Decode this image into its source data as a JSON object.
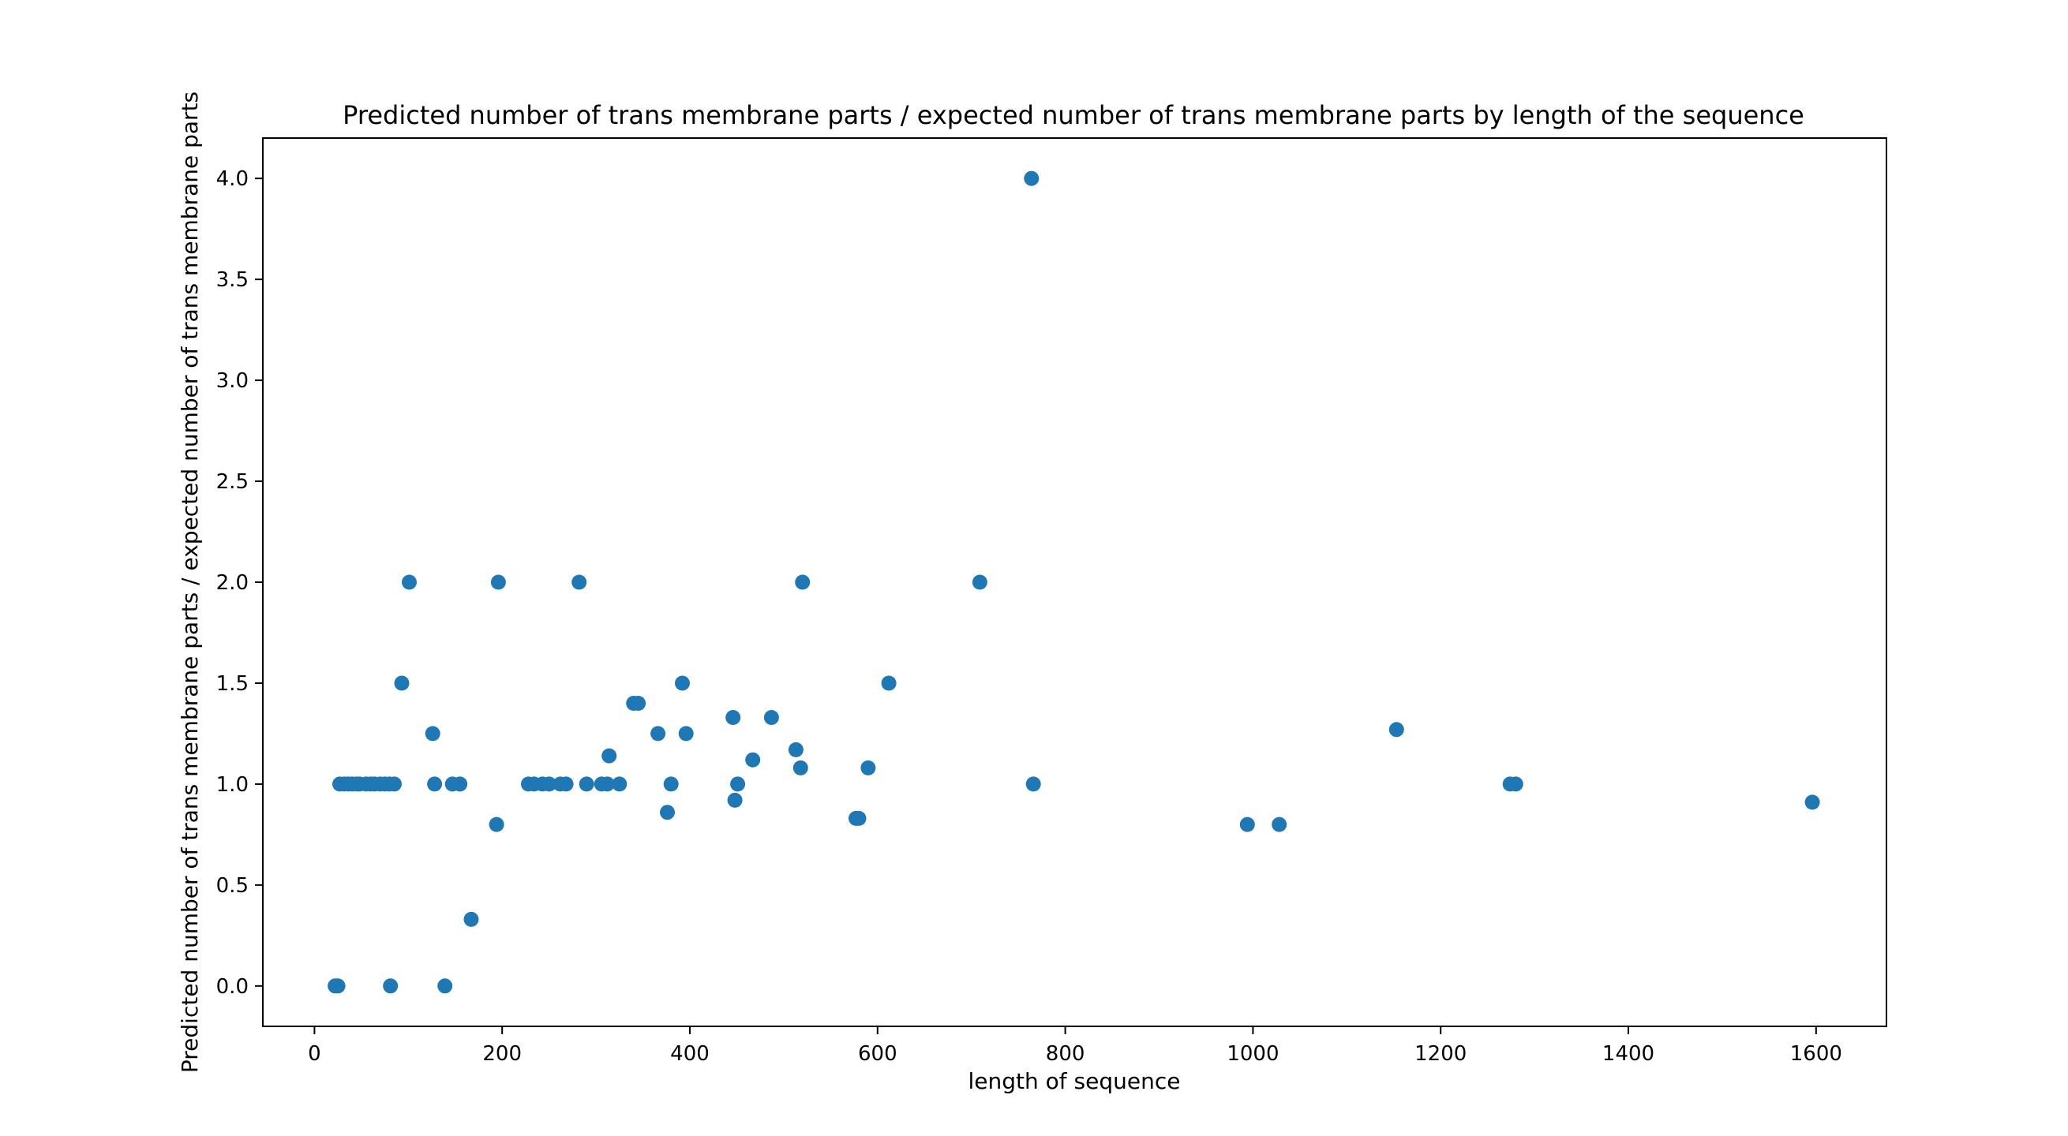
{
  "chart_data": {
    "type": "scatter",
    "title": "Predicted number of trans membrane parts / expected number of trans membrane parts by length of the sequence",
    "xlabel": "length of sequence",
    "ylabel": "Predicted number of trans membrane parts / expected number of trans membrane parts",
    "xlim": [
      -55,
      1675
    ],
    "ylim": [
      -0.2,
      4.2
    ],
    "x_ticks": [
      0,
      200,
      400,
      600,
      800,
      1000,
      1200,
      1400,
      1600
    ],
    "x_tick_labels": [
      "0",
      "200",
      "400",
      "600",
      "800",
      "1000",
      "1200",
      "1400",
      "1600"
    ],
    "y_ticks": [
      0.0,
      0.5,
      1.0,
      1.5,
      2.0,
      2.5,
      3.0,
      3.5,
      4.0
    ],
    "y_tick_labels": [
      "0.0",
      "0.5",
      "1.0",
      "1.5",
      "2.0",
      "2.5",
      "3.0",
      "3.5",
      "4.0"
    ],
    "grid": false,
    "marker_color": "#1f77b4",
    "series": [
      {
        "points": [
          [
            22,
            0.0
          ],
          [
            25,
            0.0
          ],
          [
            27,
            1.0
          ],
          [
            32,
            1.0
          ],
          [
            36,
            1.0
          ],
          [
            40,
            1.0
          ],
          [
            45,
            1.0
          ],
          [
            48,
            1.0
          ],
          [
            55,
            1.0
          ],
          [
            60,
            1.0
          ],
          [
            64,
            1.0
          ],
          [
            70,
            1.0
          ],
          [
            75,
            1.0
          ],
          [
            80,
            1.0
          ],
          [
            85,
            1.0
          ],
          [
            81,
            0.0
          ],
          [
            93,
            1.5
          ],
          [
            101,
            2.0
          ],
          [
            126,
            1.25
          ],
          [
            128,
            1.0
          ],
          [
            139,
            0.0
          ],
          [
            147,
            1.0
          ],
          [
            155,
            1.0
          ],
          [
            167,
            0.33
          ],
          [
            194,
            0.8
          ],
          [
            196,
            2.0
          ],
          [
            228,
            1.0
          ],
          [
            234,
            1.0
          ],
          [
            243,
            1.0
          ],
          [
            250,
            1.0
          ],
          [
            262,
            1.0
          ],
          [
            268,
            1.0
          ],
          [
            282,
            2.0
          ],
          [
            290,
            1.0
          ],
          [
            306,
            1.0
          ],
          [
            312,
            1.0
          ],
          [
            314,
            1.14
          ],
          [
            325,
            1.0
          ],
          [
            340,
            1.4
          ],
          [
            345,
            1.4
          ],
          [
            366,
            1.25
          ],
          [
            376,
            0.86
          ],
          [
            380,
            1.0
          ],
          [
            392,
            1.5
          ],
          [
            396,
            1.25
          ],
          [
            446,
            1.33
          ],
          [
            448,
            0.92
          ],
          [
            451,
            1.0
          ],
          [
            467,
            1.12
          ],
          [
            487,
            1.33
          ],
          [
            513,
            1.17
          ],
          [
            518,
            1.08
          ],
          [
            520,
            2.0
          ],
          [
            577,
            0.83
          ],
          [
            580,
            0.83
          ],
          [
            590,
            1.08
          ],
          [
            612,
            1.5
          ],
          [
            709,
            2.0
          ],
          [
            764,
            4.0
          ],
          [
            766,
            1.0
          ],
          [
            994,
            0.8
          ],
          [
            1028,
            0.8
          ],
          [
            1153,
            1.27
          ],
          [
            1274,
            1.0
          ],
          [
            1280,
            1.0
          ],
          [
            1596,
            0.91
          ]
        ]
      }
    ]
  }
}
